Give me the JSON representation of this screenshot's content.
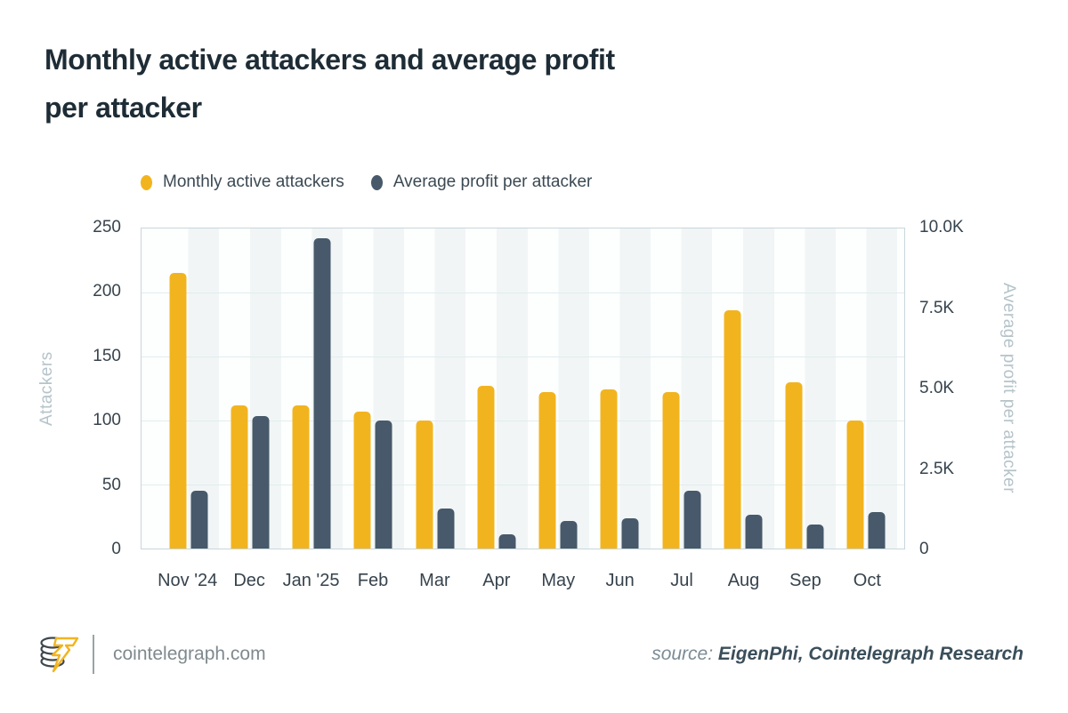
{
  "title_line1": "Monthly active attackers and average profit",
  "title_line2": "per attacker",
  "legend": {
    "items": [
      {
        "label": "Monthly active attackers",
        "color": "#F2B41E"
      },
      {
        "label": "Average profit per attacker",
        "color": "#47596A"
      }
    ]
  },
  "chart_data": {
    "type": "bar",
    "categories": [
      "Nov '24",
      "Dec",
      "Jan '25",
      "Feb",
      "Mar",
      "Apr",
      "May",
      "Jun",
      "Jul",
      "Aug",
      "Sep",
      "Oct"
    ],
    "series": [
      {
        "name": "Monthly active attackers",
        "axis": "left",
        "color": "#F2B41E",
        "values": [
          215,
          112,
          112,
          107,
          100,
          127,
          122,
          124,
          122,
          186,
          130,
          100
        ]
      },
      {
        "name": "Average profit per attacker",
        "axis": "right",
        "color": "#47596A",
        "values": [
          1800,
          4150,
          9700,
          4000,
          1250,
          450,
          850,
          950,
          1800,
          1050,
          750,
          1150
        ]
      }
    ],
    "left_axis": {
      "label": "Attackers",
      "ticks": [
        "250",
        "200",
        "150",
        "100",
        "50",
        "0"
      ],
      "min": 0,
      "max": 250
    },
    "right_axis": {
      "label": "Average profit per attacker",
      "ticks": [
        "10.0K",
        "7.5K",
        "5.0K",
        "2.5K",
        "0"
      ],
      "min": 0,
      "max": 10000
    },
    "grid": "horizontal",
    "legend_position": "top",
    "title": "Monthly active attackers and average profit per attacker"
  },
  "footer": {
    "site": "cointelegraph.com",
    "source_prefix": "source:",
    "source": "EigenPhi, Cointelegraph Research"
  },
  "colors": {
    "yellow": "#F2B41E",
    "slate": "#47596A",
    "title": "#1E2C36",
    "tick_text": "#36434D",
    "axis_title": "#B5C4CA",
    "gridline": "#E3ECEE",
    "plot_border": "#C9D7DB",
    "stripe": "#F1F5F6",
    "footer_text": "#7F8A8E",
    "source_prefix": "#7B8C96",
    "source_bold": "#3A4E5A"
  }
}
